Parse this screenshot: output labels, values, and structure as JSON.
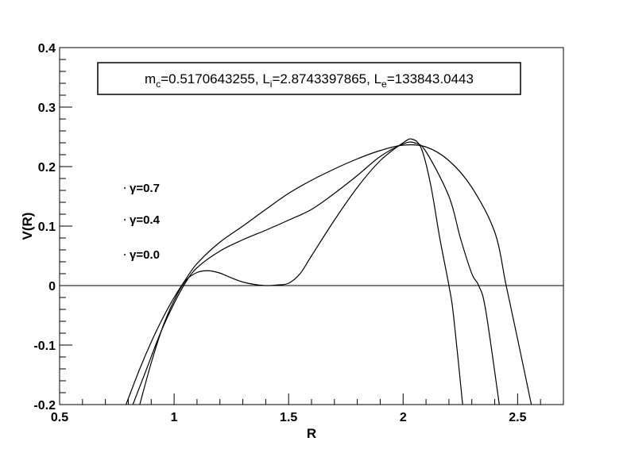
{
  "chart_data": {
    "type": "line",
    "xlabel": "R",
    "ylabel": "V(R)",
    "xlim": [
      0.5,
      2.7
    ],
    "ylim": [
      -0.2,
      0.4
    ],
    "grid": false,
    "x_ticks": [
      "0.5",
      "1",
      "1.5",
      "2",
      "2.5"
    ],
    "y_ticks": [
      "-0.2",
      "-0.1",
      "0",
      "0.1",
      "0.2",
      "0.3",
      "0.4"
    ],
    "parameter_box": {
      "parts": [
        {
          "t": "m",
          "sub": "c",
          "rest": "=0.5170643255, "
        },
        {
          "t": "L",
          "sub": "i",
          "rest": "=2.8743397865, "
        },
        {
          "t": "L",
          "sub": "e",
          "rest": "=133843.0443"
        }
      ]
    },
    "reference_line_y": 0,
    "series": [
      {
        "name": "γ=0.7",
        "x": [
          0.79,
          0.85,
          0.9,
          0.95,
          1.0,
          1.05,
          1.1,
          1.2,
          1.3,
          1.4,
          1.5,
          1.6,
          1.7,
          1.8,
          1.9,
          2.0,
          2.1,
          2.2,
          2.3,
          2.4,
          2.45,
          2.5,
          2.56
        ],
        "y": [
          -0.2,
          -0.14,
          -0.095,
          -0.055,
          -0.02,
          0.01,
          0.037,
          0.073,
          0.1,
          0.128,
          0.155,
          0.177,
          0.196,
          0.213,
          0.227,
          0.236,
          0.233,
          0.21,
          0.165,
          0.09,
          0.0,
          -0.09,
          -0.2
        ]
      },
      {
        "name": "γ=0.4",
        "x": [
          0.82,
          0.88,
          0.94,
          1.0,
          1.05,
          1.1,
          1.2,
          1.3,
          1.4,
          1.5,
          1.6,
          1.7,
          1.8,
          1.9,
          2.0,
          2.05,
          2.1,
          2.2,
          2.25,
          2.3,
          2.33,
          2.36,
          2.42
        ],
        "y": [
          -0.2,
          -0.14,
          -0.08,
          -0.03,
          0.005,
          0.03,
          0.058,
          0.077,
          0.093,
          0.11,
          0.128,
          0.155,
          0.185,
          0.217,
          0.238,
          0.24,
          0.225,
          0.15,
          0.08,
          0.02,
          0.0,
          -0.04,
          -0.2
        ]
      },
      {
        "name": "γ=0.0",
        "x": [
          0.85,
          0.9,
          0.95,
          1.0,
          1.05,
          1.1,
          1.15,
          1.2,
          1.25,
          1.3,
          1.35,
          1.4,
          1.45,
          1.5,
          1.55,
          1.6,
          1.7,
          1.8,
          1.9,
          2.0,
          2.04,
          2.08,
          2.12,
          2.16,
          2.2,
          2.22,
          2.26
        ],
        "y": [
          -0.2,
          -0.13,
          -0.07,
          -0.025,
          0.008,
          0.022,
          0.025,
          0.021,
          0.013,
          0.006,
          0.002,
          0.0,
          0.001,
          0.004,
          0.02,
          0.05,
          0.11,
          0.165,
          0.21,
          0.24,
          0.246,
          0.23,
          0.17,
          0.08,
          0.0,
          -0.05,
          -0.2
        ]
      }
    ]
  }
}
